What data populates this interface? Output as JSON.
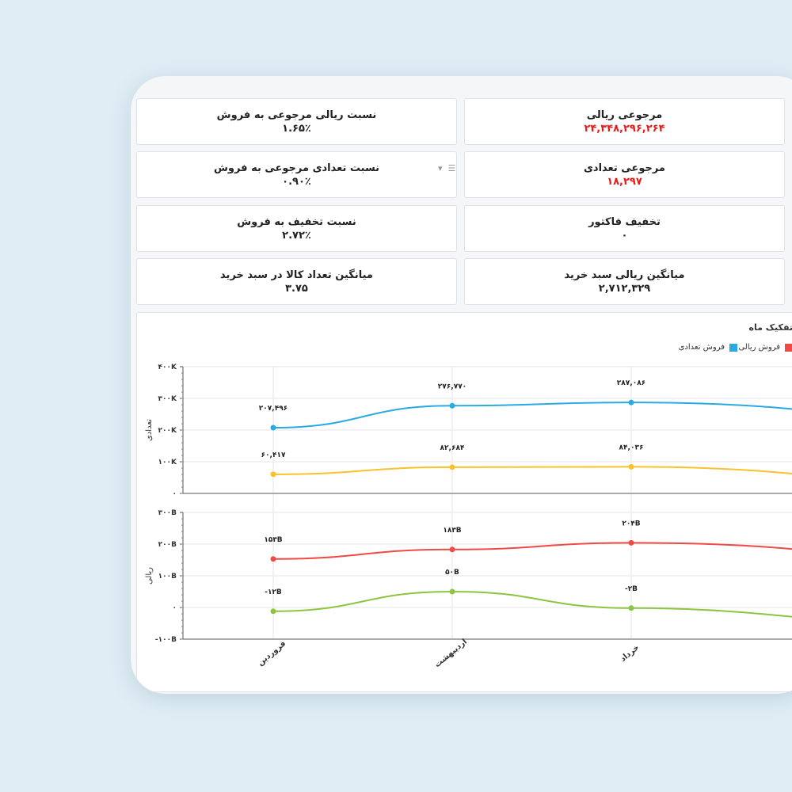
{
  "cards": {
    "rial_return": {
      "title": "مرجوعی ریالی",
      "value": "۲۴,۳۴۸,۲۹۶,۲۶۴"
    },
    "rial_return_ratio": {
      "title": "نسبت ریالی مرجوعی به فروش",
      "value": "۱.۶۵٪"
    },
    "count_return": {
      "title": "مرجوعی تعدادی",
      "value": "۱۸,۲۹۷"
    },
    "count_return_ratio": {
      "title": "نسبت تعدادی مرجوعی به فروش",
      "value": "۰.۹۰٪"
    },
    "invoice_discount": {
      "title": "تخفیف فاکتور",
      "value": "۰"
    },
    "discount_ratio": {
      "title": "نسبت تخفیف به فروش",
      "value": "۲.۷۲٪"
    },
    "avg_basket_rial": {
      "title": "میانگین ریالی سبد خرید",
      "value": "۲,۷۱۲,۳۲۹"
    },
    "avg_basket_items": {
      "title": "میانگین تعداد کالا در سبد خرید",
      "value": "۳.۷۵"
    }
  },
  "chart_panel": {
    "title": "تفکیک ماه",
    "legend": [
      {
        "label": "فروش ریالی",
        "color": "#ef4b46"
      },
      {
        "label": "فروش تعدادی",
        "color": "#29aae3"
      }
    ]
  },
  "chart_data": [
    {
      "type": "line",
      "ylabel": "تعدادی",
      "ylim": [
        0,
        400000
      ],
      "yticks": [
        "۰",
        "۱۰۰K",
        "۲۰۰K",
        "۳۰۰K",
        "۴۰۰K"
      ],
      "categories": [
        "فروردین",
        "اردیبهشت",
        "خرداد"
      ],
      "series": [
        {
          "color": "#29aae3",
          "values": [
            207496,
            276770,
            287086
          ],
          "labels": [
            "۲۰۷,۴۹۶",
            "۲۷۶,۷۷۰",
            "۲۸۷,۰۸۶"
          ]
        },
        {
          "color": "#f8c22a",
          "values": [
            60417,
            82684,
            84036
          ],
          "labels": [
            "۶۰,۴۱۷",
            "۸۲,۶۸۴",
            "۸۴,۰۳۶"
          ]
        }
      ]
    },
    {
      "type": "line",
      "ylabel": "ریالی",
      "ylim": [
        -100,
        300
      ],
      "yticks": [
        "-۱۰۰B",
        "۰",
        "۱۰۰B",
        "۲۰۰B",
        "۳۰۰B"
      ],
      "categories": [
        "فروردین",
        "اردیبهشت",
        "خرداد"
      ],
      "series": [
        {
          "color": "#ef4b46",
          "values": [
            153,
            183,
            204
          ],
          "labels": [
            "۱۵۳B",
            "۱۸۳B",
            "۲۰۴B"
          ]
        },
        {
          "color": "#8cc542",
          "values": [
            -12,
            50,
            -2
          ],
          "labels": [
            "-۱۲B",
            "۵۰B",
            "-۲B"
          ]
        }
      ]
    }
  ]
}
